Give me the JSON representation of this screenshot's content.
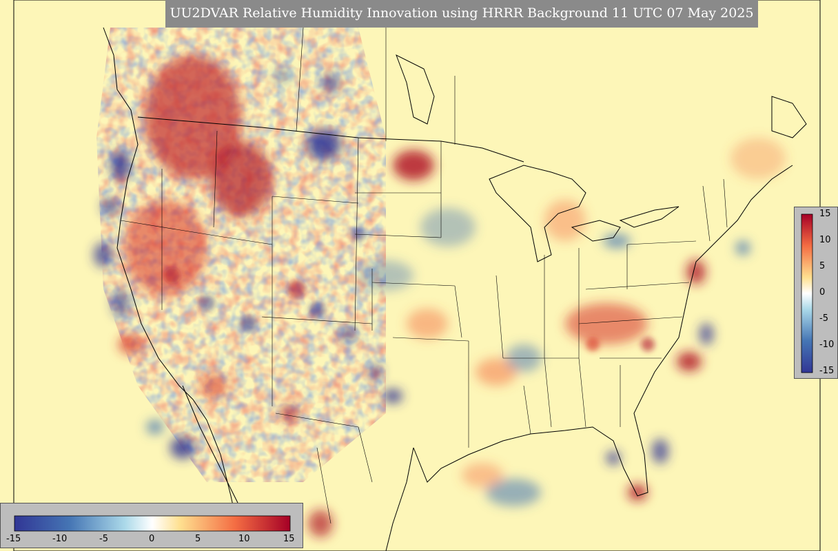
{
  "title": "UU2DVAR Relative Humidity Innovation using HRRR Background 11 UTC 07 May 2025",
  "colorbar": {
    "min": -15,
    "max": 15,
    "ticks": [
      "-15",
      "-10",
      "-5",
      "0",
      "5",
      "10",
      "15"
    ],
    "right_ticks": [
      "15",
      "10",
      "5",
      "0",
      "-5",
      "-10",
      "-15"
    ],
    "colors": [
      "#313695",
      "#4575b4",
      "#74add1",
      "#abd9e9",
      "#e0f3f8",
      "#ffffbf",
      "#fee090",
      "#fdae61",
      "#f46d43",
      "#d73027",
      "#a50026"
    ]
  },
  "map": {
    "background_color": "#fdf6b8",
    "border_color": "#000000"
  }
}
